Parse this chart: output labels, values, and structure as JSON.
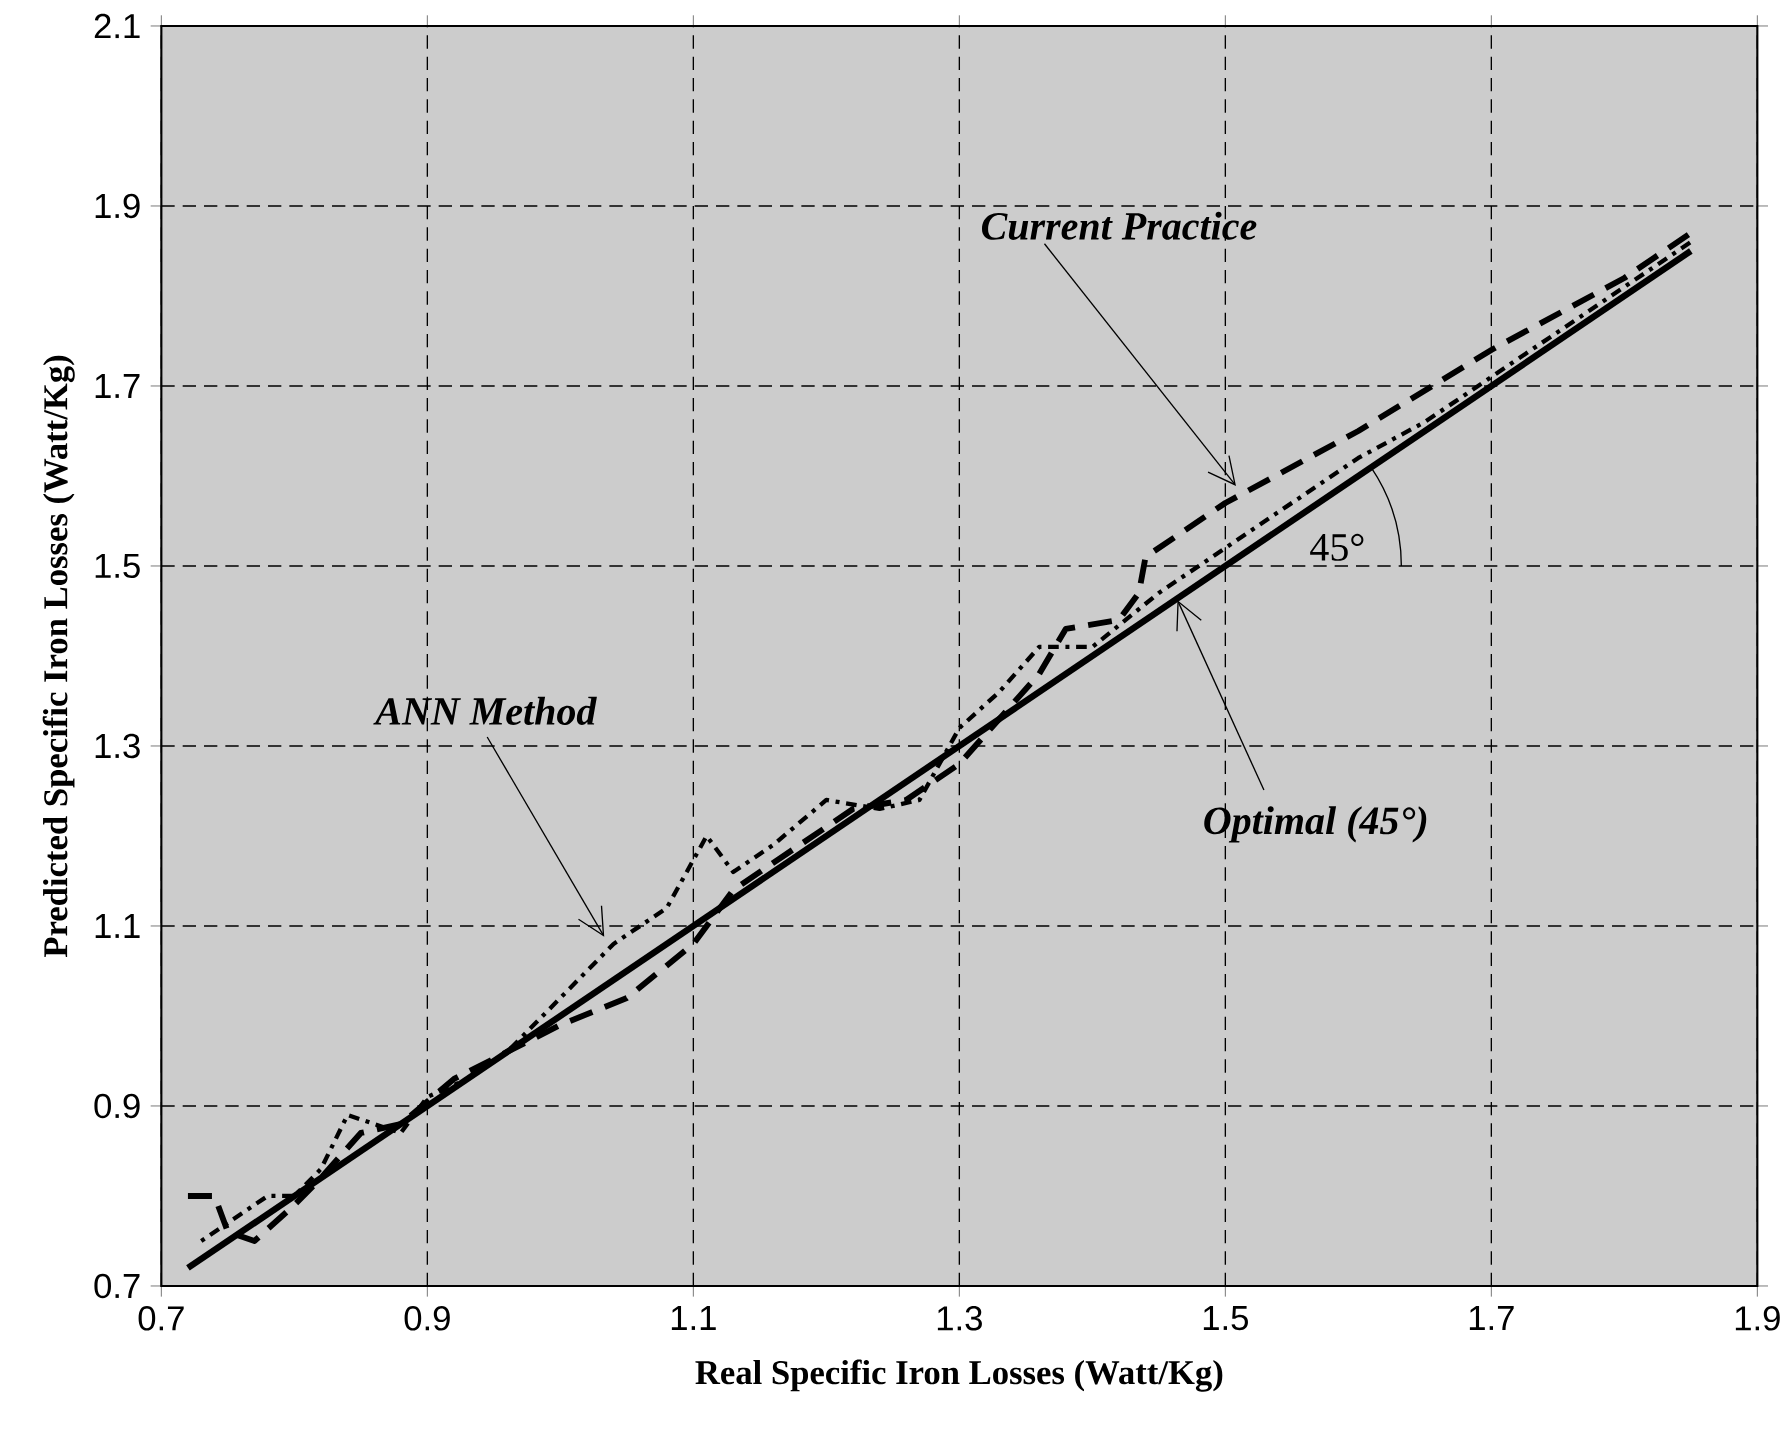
{
  "chart_data": {
    "type": "line",
    "xlabel": "Real Specific Iron Losses (Watt/Kg)",
    "ylabel": "Predicted Specific Iron Losses (Watt/Kg)",
    "xlim": [
      0.7,
      1.9
    ],
    "ylim": [
      0.7,
      2.1
    ],
    "xticks": [
      0.7,
      0.9,
      1.1,
      1.3,
      1.5,
      1.7,
      1.9
    ],
    "yticks": [
      0.7,
      0.9,
      1.1,
      1.3,
      1.5,
      1.7,
      1.9,
      2.1
    ],
    "grid": true,
    "series": [
      {
        "color": "#000000",
        "line_style": "solid",
        "x": [
          0.72,
          1.85
        ],
        "values": [
          0.72,
          1.85
        ]
      },
      {
        "color": "#000000",
        "line_style": "dashed",
        "x": [
          0.72,
          0.74,
          0.75,
          0.77,
          0.8,
          0.82,
          0.85,
          0.88,
          0.92,
          0.96,
          1.0,
          1.05,
          1.1,
          1.13,
          1.17,
          1.22,
          1.26,
          1.3,
          1.33,
          1.36,
          1.38,
          1.42,
          1.435,
          1.44,
          1.5,
          1.6,
          1.7,
          1.8,
          1.85
        ],
        "values": [
          0.8,
          0.8,
          0.76,
          0.75,
          0.79,
          0.82,
          0.87,
          0.88,
          0.93,
          0.96,
          0.99,
          1.02,
          1.08,
          1.14,
          1.18,
          1.23,
          1.24,
          1.28,
          1.33,
          1.38,
          1.43,
          1.44,
          1.47,
          1.51,
          1.57,
          1.65,
          1.74,
          1.82,
          1.87
        ]
      },
      {
        "color": "#000000",
        "line_style": "dotted",
        "x": [
          0.73,
          0.75,
          0.78,
          0.8,
          0.82,
          0.84,
          0.86,
          0.88,
          0.9,
          0.93,
          0.96,
          1.0,
          1.04,
          1.08,
          1.11,
          1.13,
          1.16,
          1.2,
          1.24,
          1.27,
          1.3,
          1.33,
          1.36,
          1.4,
          1.45,
          1.5,
          1.55,
          1.6,
          1.65,
          1.7,
          1.75,
          1.8,
          1.85
        ],
        "values": [
          0.75,
          0.77,
          0.8,
          0.8,
          0.83,
          0.89,
          0.88,
          0.87,
          0.91,
          0.93,
          0.96,
          1.02,
          1.08,
          1.12,
          1.2,
          1.16,
          1.19,
          1.24,
          1.23,
          1.24,
          1.32,
          1.36,
          1.41,
          1.41,
          1.47,
          1.52,
          1.57,
          1.62,
          1.66,
          1.71,
          1.76,
          1.81,
          1.86
        ]
      }
    ],
    "annotations": [
      {
        "text": "*Current Practice*",
        "x": 1.508,
        "y": 1.589
      },
      {
        "text": "*ANN Method*",
        "x": 1.033,
        "y": 1.088
      },
      {
        "text": "*Optimal (45°)*",
        "x": 1.464,
        "y": 1.462
      },
      {
        "text": "45°",
        "x": 1.5,
        "y": 1.5
      }
    ]
  }
}
